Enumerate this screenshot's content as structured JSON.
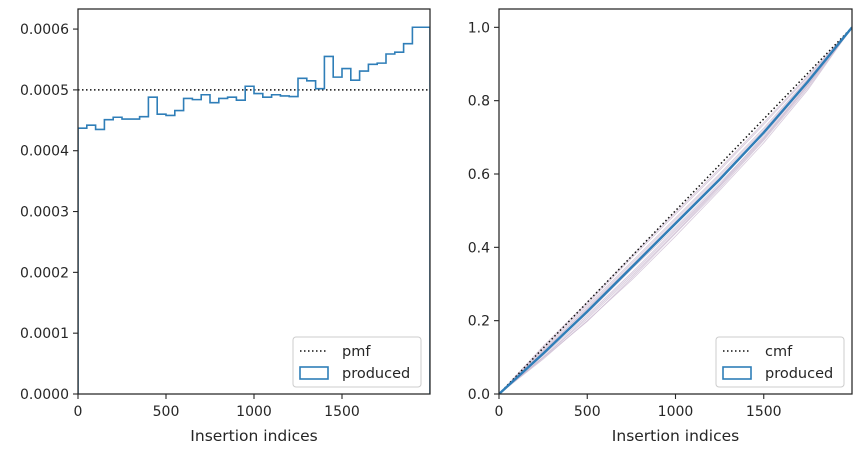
{
  "colors": {
    "produced": "#2f7eb8",
    "reference": "#111111",
    "realizations": "#c9b6cf",
    "axes": "#262626",
    "legend_border": "#cccccc"
  },
  "chart_data": [
    {
      "type": "step",
      "xlabel": "Insertion indices",
      "ylabel": "",
      "xlim": [
        0,
        2000
      ],
      "ylim": [
        0,
        0.000633
      ],
      "x_ticks": [
        0,
        500,
        1000,
        1500
      ],
      "x_tick_labels": [
        "0",
        "500",
        "1000",
        "1500"
      ],
      "y_ticks": [
        0,
        0.0001,
        0.0002,
        0.0003,
        0.0004,
        0.0005,
        0.0006
      ],
      "y_tick_labels": [
        "0.0000",
        "0.0001",
        "0.0002",
        "0.0003",
        "0.0004",
        "0.0005",
        "0.0006"
      ],
      "grid": false,
      "legend": {
        "position": "lower-right",
        "entries": [
          "pmf",
          "produced"
        ]
      },
      "series": [
        {
          "name": "pmf",
          "style": "dotted",
          "x": [
            0,
            2000
          ],
          "values": [
            0.0005,
            0.0005
          ]
        },
        {
          "name": "produced",
          "style": "step",
          "bin_edges": [
            0,
            50,
            100,
            150,
            200,
            250,
            300,
            350,
            400,
            450,
            500,
            550,
            600,
            650,
            700,
            750,
            800,
            850,
            900,
            950,
            1000,
            1050,
            1100,
            1150,
            1200,
            1250,
            1300,
            1350,
            1400,
            1450,
            1500,
            1550,
            1600,
            1650,
            1700,
            1750,
            1800,
            1850,
            1900,
            1950,
            2000
          ],
          "values": [
            0.000437,
            0.000442,
            0.000435,
            0.000451,
            0.000455,
            0.000452,
            0.000452,
            0.000456,
            0.000488,
            0.00046,
            0.000458,
            0.000466,
            0.000486,
            0.000484,
            0.000492,
            0.000479,
            0.000486,
            0.000488,
            0.000483,
            0.000506,
            0.000494,
            0.000488,
            0.000492,
            0.00049,
            0.000489,
            0.000519,
            0.000515,
            0.000502,
            0.000555,
            0.000521,
            0.000535,
            0.000516,
            0.000531,
            0.000542,
            0.000544,
            0.000559,
            0.000562,
            0.000576,
            0.000603,
            0.000603
          ]
        }
      ]
    },
    {
      "type": "line",
      "xlabel": "Insertion indices",
      "ylabel": "",
      "xlim": [
        0,
        2000
      ],
      "ylim": [
        0,
        1.05
      ],
      "x_ticks": [
        0,
        500,
        1000,
        1500
      ],
      "x_tick_labels": [
        "0",
        "500",
        "1000",
        "1500"
      ],
      "y_ticks": [
        0,
        0.2,
        0.4,
        0.6,
        0.8,
        1.0
      ],
      "y_tick_labels": [
        "0.0",
        "0.2",
        "0.4",
        "0.6",
        "0.8",
        "1.0"
      ],
      "grid": false,
      "legend": {
        "position": "lower-right",
        "entries": [
          "cmf",
          "produced"
        ]
      },
      "series": [
        {
          "name": "cmf",
          "style": "dotted",
          "x": [
            0,
            2000
          ],
          "values": [
            0,
            1
          ]
        },
        {
          "name": "produced",
          "style": "solid",
          "x": [
            0,
            250,
            500,
            750,
            1000,
            1250,
            1500,
            1750,
            2000
          ],
          "values": [
            0,
            0.11,
            0.225,
            0.345,
            0.465,
            0.585,
            0.713,
            0.852,
            1.0
          ]
        }
      ],
      "realizations": [
        {
          "x": [
            0,
            250,
            500,
            750,
            1000,
            1250,
            1500,
            1750,
            2000
          ],
          "values": [
            0,
            0.1,
            0.205,
            0.32,
            0.44,
            0.565,
            0.695,
            0.84,
            1.0
          ]
        },
        {
          "x": [
            0,
            250,
            500,
            750,
            1000,
            1250,
            1500,
            1750,
            2000
          ],
          "values": [
            0,
            0.115,
            0.235,
            0.355,
            0.475,
            0.595,
            0.72,
            0.857,
            1.0
          ]
        },
        {
          "x": [
            0,
            250,
            500,
            750,
            1000,
            1250,
            1500,
            1750,
            2000
          ],
          "values": [
            0,
            0.125,
            0.245,
            0.37,
            0.49,
            0.61,
            0.735,
            0.865,
            1.0
          ]
        },
        {
          "x": [
            0,
            250,
            500,
            750,
            1000,
            1250,
            1500,
            1750,
            2000
          ],
          "values": [
            0,
            0.095,
            0.2,
            0.31,
            0.43,
            0.555,
            0.685,
            0.83,
            1.0
          ]
        },
        {
          "x": [
            0,
            250,
            500,
            750,
            1000,
            1250,
            1500,
            1750,
            2000
          ],
          "values": [
            0,
            0.11,
            0.22,
            0.34,
            0.455,
            0.575,
            0.7,
            0.845,
            1.0
          ]
        },
        {
          "x": [
            0,
            250,
            500,
            750,
            1000,
            1250,
            1500,
            1750,
            2000
          ],
          "values": [
            0,
            0.12,
            0.24,
            0.36,
            0.48,
            0.6,
            0.725,
            0.86,
            1.0
          ]
        },
        {
          "x": [
            0,
            250,
            500,
            750,
            1000,
            1250,
            1500,
            1750,
            2000
          ],
          "values": [
            0,
            0.105,
            0.215,
            0.33,
            0.45,
            0.57,
            0.705,
            0.85,
            1.0
          ]
        },
        {
          "x": [
            0,
            250,
            500,
            750,
            1000,
            1250,
            1500,
            1750,
            2000
          ],
          "values": [
            0,
            0.13,
            0.25,
            0.375,
            0.495,
            0.615,
            0.74,
            0.868,
            1.0
          ]
        },
        {
          "x": [
            0,
            250,
            500,
            750,
            1000,
            1250,
            1500,
            1750,
            2000
          ],
          "values": [
            0,
            0.1,
            0.21,
            0.325,
            0.445,
            0.568,
            0.698,
            0.842,
            1.0
          ]
        },
        {
          "x": [
            0,
            250,
            500,
            750,
            1000,
            1250,
            1500,
            1750,
            2000
          ],
          "values": [
            0,
            0.117,
            0.232,
            0.35,
            0.47,
            0.59,
            0.716,
            0.855,
            1.0
          ]
        },
        {
          "x": [
            0,
            250,
            500,
            750,
            1000,
            1250,
            1500,
            1750,
            2000
          ],
          "values": [
            0,
            0.108,
            0.228,
            0.348,
            0.468,
            0.582,
            0.71,
            0.848,
            1.0
          ]
        },
        {
          "x": [
            0,
            250,
            500,
            750,
            1000,
            1250,
            1500,
            1750,
            2000
          ],
          "values": [
            0,
            0.098,
            0.198,
            0.315,
            0.438,
            0.56,
            0.692,
            0.835,
            1.0
          ]
        }
      ]
    }
  ]
}
